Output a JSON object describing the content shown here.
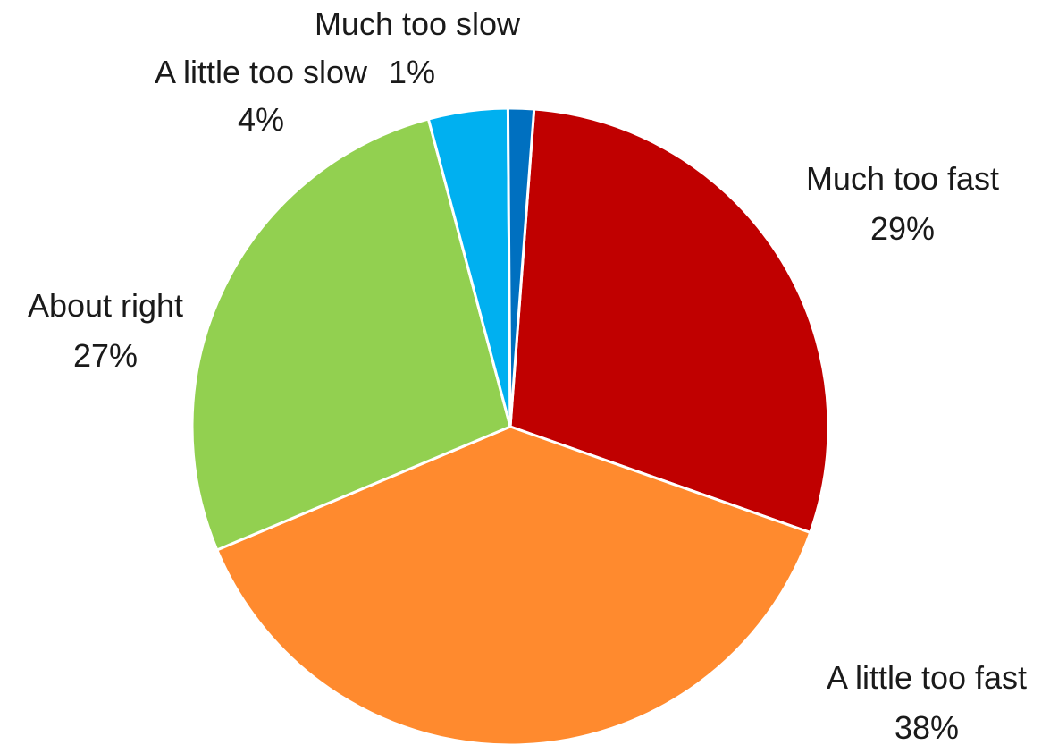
{
  "chart_data": {
    "type": "pie",
    "title": "",
    "series": [
      {
        "values": [
          29,
          38,
          27,
          4,
          1.3
        ]
      }
    ],
    "slices": [
      {
        "label": "Much too fast",
        "value_label": "29%",
        "value": 29,
        "color": "#C00000"
      },
      {
        "label": "A little too fast",
        "value_label": "38%",
        "value": 38,
        "color": "#FF8A2E"
      },
      {
        "label": "About right",
        "value_label": "27%",
        "value": 27,
        "color": "#92D050"
      },
      {
        "label": "A little too slow",
        "value_label": "4%",
        "value": 4,
        "color": "#00B0F0"
      },
      {
        "label": "Much too slow",
        "value_label": "1%",
        "value": 1.3,
        "color": "#0070C0"
      }
    ],
    "start": "12 o'clock, clockwise",
    "legend": "none"
  }
}
